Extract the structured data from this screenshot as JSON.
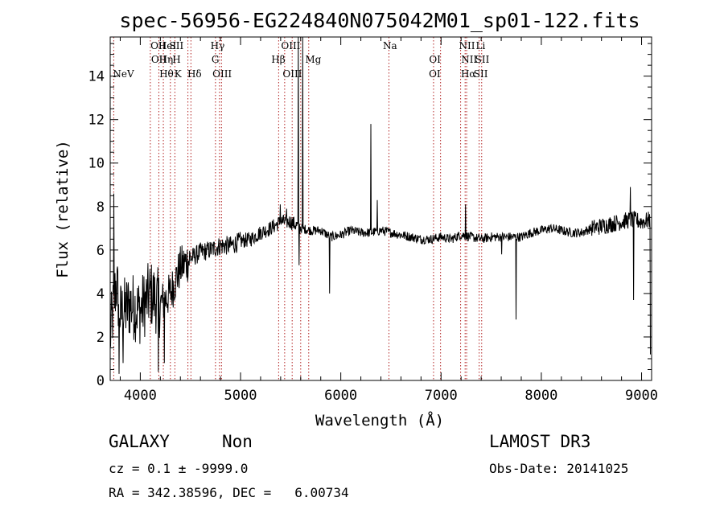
{
  "chart_data": {
    "type": "line",
    "title": "spec-56956-EG224840N075042M01_sp01-122.fits",
    "xlabel": "Wavelength (Å)",
    "ylabel": "Flux (relative)",
    "xlim": [
      3700,
      9100
    ],
    "ylim": [
      0,
      15.8
    ],
    "xticks": [
      4000,
      5000,
      6000,
      7000,
      8000,
      9000
    ],
    "yticks": [
      0,
      2,
      4,
      6,
      8,
      10,
      12,
      14
    ],
    "x_tick_labels": [
      "4000",
      "5000",
      "6000",
      "7000",
      "8000",
      "9000"
    ],
    "y_tick_labels": [
      "0",
      "2",
      "4",
      "6",
      "8",
      "10",
      "12",
      "14"
    ],
    "line_color": "#000000",
    "marker_line_color": "#b22222",
    "spectrum_anchors": [
      [
        3700,
        2.0
      ],
      [
        3760,
        4.5
      ],
      [
        3800,
        3.0
      ],
      [
        3900,
        3.5
      ],
      [
        4000,
        3.2
      ],
      [
        4100,
        4.0
      ],
      [
        4200,
        3.5
      ],
      [
        4300,
        4.0
      ],
      [
        4400,
        5.2
      ],
      [
        4500,
        5.6
      ],
      [
        4600,
        5.9
      ],
      [
        4700,
        6.0
      ],
      [
        4800,
        6.2
      ],
      [
        4900,
        6.2
      ],
      [
        5000,
        6.4
      ],
      [
        5100,
        6.5
      ],
      [
        5200,
        6.8
      ],
      [
        5300,
        7.0
      ],
      [
        5400,
        7.3
      ],
      [
        5500,
        7.3
      ],
      [
        5600,
        7.0
      ],
      [
        5700,
        6.9
      ],
      [
        5800,
        6.9
      ],
      [
        5900,
        6.6
      ],
      [
        6000,
        6.7
      ],
      [
        6100,
        6.9
      ],
      [
        6200,
        6.8
      ],
      [
        6300,
        6.8
      ],
      [
        6400,
        6.9
      ],
      [
        6500,
        6.8
      ],
      [
        6600,
        6.7
      ],
      [
        6700,
        6.6
      ],
      [
        6800,
        6.5
      ],
      [
        6900,
        6.5
      ],
      [
        7000,
        6.6
      ],
      [
        7100,
        6.5
      ],
      [
        7200,
        6.7
      ],
      [
        7300,
        6.6
      ],
      [
        7400,
        6.5
      ],
      [
        7500,
        6.6
      ],
      [
        7600,
        6.6
      ],
      [
        7700,
        6.6
      ],
      [
        7800,
        6.6
      ],
      [
        7900,
        6.8
      ],
      [
        8000,
        6.9
      ],
      [
        8100,
        7.0
      ],
      [
        8200,
        6.9
      ],
      [
        8300,
        6.8
      ],
      [
        8400,
        6.8
      ],
      [
        8500,
        7.0
      ],
      [
        8600,
        7.1
      ],
      [
        8700,
        7.2
      ],
      [
        8800,
        7.3
      ],
      [
        8900,
        7.4
      ],
      [
        9000,
        7.3
      ],
      [
        9100,
        7.4
      ]
    ],
    "spectrum_features": [
      [
        3735,
        8.6
      ],
      [
        3790,
        0.3
      ],
      [
        3830,
        0.8
      ],
      [
        4180,
        0.4
      ],
      [
        4240,
        0.8
      ],
      [
        5395,
        8.1
      ],
      [
        5460,
        7.9
      ],
      [
        5577,
        15.8
      ],
      [
        5586,
        5.3
      ],
      [
        5620,
        15.8
      ],
      [
        5890,
        4.0
      ],
      [
        6300,
        11.8
      ],
      [
        6363,
        8.3
      ],
      [
        7246,
        8.1
      ],
      [
        7606,
        5.8
      ],
      [
        7750,
        2.8
      ],
      [
        8890,
        8.9
      ],
      [
        8920,
        3.7
      ],
      [
        9090,
        1.2
      ]
    ],
    "line_markers": [
      {
        "wl": 3727,
        "label": "NeV",
        "row": 3
      },
      {
        "wl": 4102,
        "label": "OII",
        "row": 1
      },
      {
        "wl": 4108,
        "label": "OII",
        "row": 2
      },
      {
        "wl": 4180,
        "label": "HeI",
        "row": 1
      },
      {
        "wl": 4186,
        "label": "Hη",
        "row": 2
      },
      {
        "wl": 4190,
        "label": "Hθ",
        "row": 3
      },
      {
        "wl": 4290,
        "label": "SII",
        "row": 1
      },
      {
        "wl": 4320,
        "label": "H",
        "row": 2
      },
      {
        "wl": 4340,
        "label": "K",
        "row": 3
      },
      {
        "wl": 4470,
        "label": "Hδ",
        "row": 3
      },
      {
        "wl": 4700,
        "label": "Hγ",
        "row": 1
      },
      {
        "wl": 4710,
        "label": "G",
        "row": 2
      },
      {
        "wl": 4720,
        "label": "OIII",
        "row": 3
      },
      {
        "wl": 5307,
        "label": "Hβ",
        "row": 2
      },
      {
        "wl": 5404,
        "label": "OIII",
        "row": 1
      },
      {
        "wl": 5420,
        "label": "OIII",
        "row": 3
      },
      {
        "wl": 5645,
        "label": "Mg",
        "row": 2
      },
      {
        "wl": 6420,
        "label": "Na",
        "row": 1
      },
      {
        "wl": 6880,
        "label": "OI",
        "row": 2
      },
      {
        "wl": 6878,
        "label": "OI",
        "row": 3
      },
      {
        "wl": 7178,
        "label": "NII",
        "row": 1
      },
      {
        "wl": 7200,
        "label": "NII",
        "row": 2
      },
      {
        "wl": 7198,
        "label": "Hα",
        "row": 3
      },
      {
        "wl": 7347,
        "label": "Li",
        "row": 1
      },
      {
        "wl": 7340,
        "label": "SII",
        "row": 2
      },
      {
        "wl": 7325,
        "label": "SII",
        "row": 3
      }
    ],
    "marker_dotted_lines": [
      3735,
      4100,
      4185,
      4230,
      4300,
      4345,
      4475,
      4505,
      4750,
      4790,
      4810,
      5380,
      5440,
      5515,
      5600,
      5680,
      6480,
      6925,
      6995,
      7195,
      7240,
      7255,
      7380,
      7405
    ]
  },
  "footer": {
    "object_class": "GALAXY",
    "subclass": "Non",
    "survey": "LAMOST DR3",
    "cz_line": "cz = 0.1 ± -9999.0",
    "obs_date": "Obs-Date: 20141025",
    "radec_line": "RA = 342.38596, DEC =   6.00734"
  }
}
